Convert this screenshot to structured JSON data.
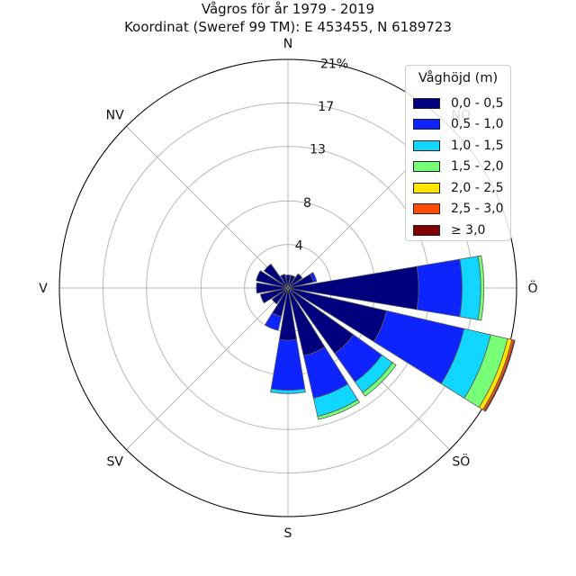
{
  "title": {
    "line1": "Vågros för år 1979 - 2019",
    "line2": "Koordinat (Sweref 99 TM): E 453455, N 6189723"
  },
  "chart_data": {
    "type": "windrose",
    "title": "Vågros för år 1979 - 2019",
    "subtitle": "Koordinat (Sweref 99 TM): E 453455, N 6189723",
    "compass_labels": [
      "N",
      "NO",
      "Ö",
      "SÖ",
      "S",
      "SV",
      "V",
      "NV"
    ],
    "radial_ticks": [
      "4",
      "8",
      "13",
      "17",
      "21%"
    ],
    "radial_tick_values": [
      4,
      8,
      13,
      17,
      21
    ],
    "rmax": 21,
    "unit": "%",
    "legend_title": "Våghöjd (m)",
    "bins": [
      "0,0 - 0,5",
      "0,5 - 1,0",
      "1,0 - 1,5",
      "1,5 - 2,0",
      "2,0 - 2,5",
      "2,5 - 3,0",
      "≥ 3,0"
    ],
    "bin_colors": [
      "#00007f",
      "#0d24ff",
      "#11d6ff",
      "#78ff78",
      "#ffe500",
      "#ff4c00",
      "#7f0000"
    ],
    "sectors": [
      {
        "direction_deg": 0,
        "values": [
          1.2,
          0,
          0,
          0,
          0,
          0,
          0
        ]
      },
      {
        "direction_deg": 22.5,
        "values": [
          1.2,
          0,
          0,
          0,
          0,
          0,
          0
        ]
      },
      {
        "direction_deg": 45,
        "values": [
          1.6,
          0,
          0,
          0,
          0,
          0,
          0
        ]
      },
      {
        "direction_deg": 67.5,
        "values": [
          2.4,
          0.3,
          0,
          0,
          0,
          0,
          0
        ]
      },
      {
        "direction_deg": 90,
        "values": [
          12.0,
          4.0,
          1.7,
          0.3,
          0,
          0,
          0
        ]
      },
      {
        "direction_deg": 112.5,
        "values": [
          9.3,
          7.3,
          2.5,
          1.6,
          0.4,
          0.2,
          0.1
        ]
      },
      {
        "direction_deg": 135,
        "values": [
          7.4,
          3.2,
          1.2,
          0.4,
          0,
          0,
          0
        ]
      },
      {
        "direction_deg": 157.5,
        "values": [
          6.4,
          4.0,
          1.7,
          0.3,
          0,
          0,
          0
        ]
      },
      {
        "direction_deg": 180,
        "values": [
          4.8,
          4.6,
          0.3,
          0,
          0,
          0,
          0
        ]
      },
      {
        "direction_deg": 202.5,
        "values": [
          2.7,
          1.3,
          0,
          0,
          0,
          0,
          0
        ]
      },
      {
        "direction_deg": 225,
        "values": [
          1.8,
          0,
          0,
          0,
          0,
          0,
          0
        ]
      },
      {
        "direction_deg": 247.5,
        "values": [
          2.6,
          0,
          0,
          0,
          0,
          0,
          0
        ]
      },
      {
        "direction_deg": 270,
        "values": [
          2.9,
          0,
          0,
          0,
          0,
          0,
          0
        ]
      },
      {
        "direction_deg": 292.5,
        "values": [
          3.0,
          0,
          0,
          0,
          0,
          0,
          0
        ]
      },
      {
        "direction_deg": 315,
        "values": [
          2.7,
          0,
          0,
          0,
          0,
          0,
          0
        ]
      },
      {
        "direction_deg": 337.5,
        "values": [
          1.3,
          0,
          0,
          0,
          0,
          0,
          0
        ]
      }
    ],
    "grid": true,
    "legend_position": "top-right"
  }
}
